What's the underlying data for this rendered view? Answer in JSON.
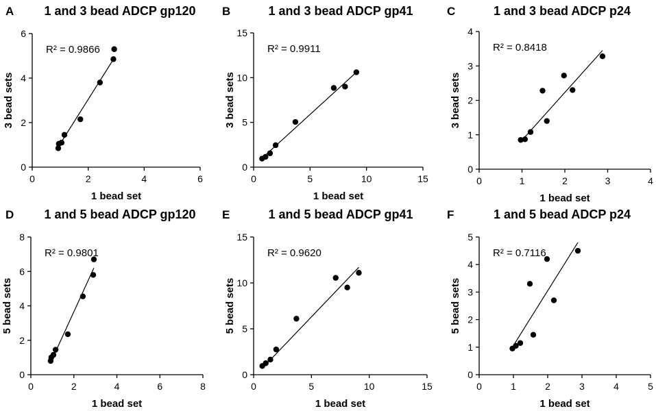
{
  "chart_data": [
    {
      "type": "scatter",
      "panel": "A",
      "title": "1 and 3 bead ADCP gp120",
      "xlabel": "1 bead set",
      "ylabel": "3 bead sets",
      "xlim": [
        0,
        6
      ],
      "ylim": [
        0,
        6
      ],
      "xticks": [
        "0",
        "2",
        "4",
        "6"
      ],
      "yticks": [
        "0",
        "2",
        "4",
        "6"
      ],
      "r2": "R² = 0.9866",
      "x": [
        0.93,
        0.95,
        1.05,
        1.15,
        1.72,
        2.42,
        2.9,
        2.93
      ],
      "y": [
        0.85,
        1.05,
        1.1,
        1.45,
        2.15,
        3.8,
        4.85,
        5.3
      ],
      "fit": [
        [
          0.9,
          0.85
        ],
        [
          2.93,
          4.9
        ]
      ]
    },
    {
      "type": "scatter",
      "panel": "B",
      "title": "1 and 3 bead ADCP gp41",
      "xlabel": "1 bead set",
      "ylabel": "3 bead sets",
      "xlim": [
        0,
        15
      ],
      "ylim": [
        0,
        15
      ],
      "xticks": [
        "0",
        "5",
        "10",
        "15"
      ],
      "yticks": [
        "0",
        "5",
        "10",
        "15"
      ],
      "r2": "R² = 0.9911",
      "x": [
        0.75,
        1.05,
        1.45,
        1.95,
        3.7,
        7.1,
        8.1,
        9.1
      ],
      "y": [
        0.95,
        1.15,
        1.55,
        2.45,
        5.05,
        8.85,
        9.0,
        10.6
      ],
      "fit": [
        [
          0.75,
          1.0
        ],
        [
          9.1,
          10.6
        ]
      ]
    },
    {
      "type": "scatter",
      "panel": "C",
      "title": "1 and 3 bead ADCP p24",
      "xlabel": "1 bead set",
      "ylabel": "3 bead sets",
      "xlim": [
        0,
        4
      ],
      "ylim": [
        0,
        4
      ],
      "xticks": [
        "0",
        "1",
        "2",
        "3",
        "4"
      ],
      "yticks": [
        "0",
        "1",
        "2",
        "3",
        "4"
      ],
      "r2": "R² = 0.8418",
      "x": [
        0.97,
        1.07,
        1.2,
        1.48,
        1.58,
        1.98,
        2.18,
        2.88
      ],
      "y": [
        0.85,
        0.87,
        1.08,
        2.28,
        1.4,
        2.72,
        2.3,
        3.28
      ],
      "fit": [
        [
          0.97,
          0.8
        ],
        [
          2.88,
          3.45
        ]
      ]
    },
    {
      "type": "scatter",
      "panel": "D",
      "title": "1 and 5 bead ADCP gp120",
      "xlabel": "1 bead set",
      "ylabel": "5 bead sets",
      "xlim": [
        0,
        8
      ],
      "ylim": [
        0,
        8
      ],
      "xticks": [
        "0",
        "2",
        "4",
        "6",
        "8"
      ],
      "yticks": [
        "0",
        "2",
        "4",
        "6",
        "8"
      ],
      "r2": "R² = 0.9801",
      "x": [
        0.92,
        0.95,
        1.05,
        1.15,
        1.72,
        2.42,
        2.9,
        2.93
      ],
      "y": [
        0.8,
        1.0,
        1.15,
        1.45,
        2.35,
        4.55,
        5.8,
        6.7
      ],
      "fit": [
        [
          0.9,
          0.65
        ],
        [
          2.93,
          6.2
        ]
      ]
    },
    {
      "type": "scatter",
      "panel": "E",
      "title": "1 and 5 bead ADCP gp41",
      "xlabel": "1 bead set",
      "ylabel": "5 bead sets",
      "xlim": [
        0,
        15
      ],
      "ylim": [
        0,
        15
      ],
      "xticks": [
        "0",
        "5",
        "10",
        "15"
      ],
      "yticks": [
        "0",
        "5",
        "10",
        "15"
      ],
      "r2": "R² = 0.9620",
      "x": [
        0.75,
        1.05,
        1.45,
        1.95,
        3.7,
        7.1,
        8.1,
        9.1
      ],
      "y": [
        0.95,
        1.25,
        1.65,
        2.75,
        6.1,
        10.55,
        9.5,
        11.1
      ],
      "fit": [
        [
          0.75,
          0.7
        ],
        [
          9.1,
          11.7
        ]
      ]
    },
    {
      "type": "scatter",
      "panel": "F",
      "title": "1 and 5 bead ADCP p24",
      "xlabel": "1 bead set",
      "ylabel": "5 bead sets",
      "xlim": [
        0,
        5
      ],
      "ylim": [
        0,
        5
      ],
      "xticks": [
        "0",
        "1",
        "2",
        "3",
        "4",
        "5"
      ],
      "yticks": [
        "0",
        "1",
        "2",
        "3",
        "4",
        "5"
      ],
      "r2": "R² = 0.7116",
      "x": [
        0.97,
        1.07,
        1.2,
        1.48,
        1.58,
        1.98,
        2.18,
        2.88
      ],
      "y": [
        0.95,
        1.05,
        1.15,
        3.3,
        1.45,
        4.2,
        2.7,
        4.5
      ],
      "fit": [
        [
          0.97,
          1.0
        ],
        [
          2.88,
          4.8
        ]
      ]
    }
  ]
}
